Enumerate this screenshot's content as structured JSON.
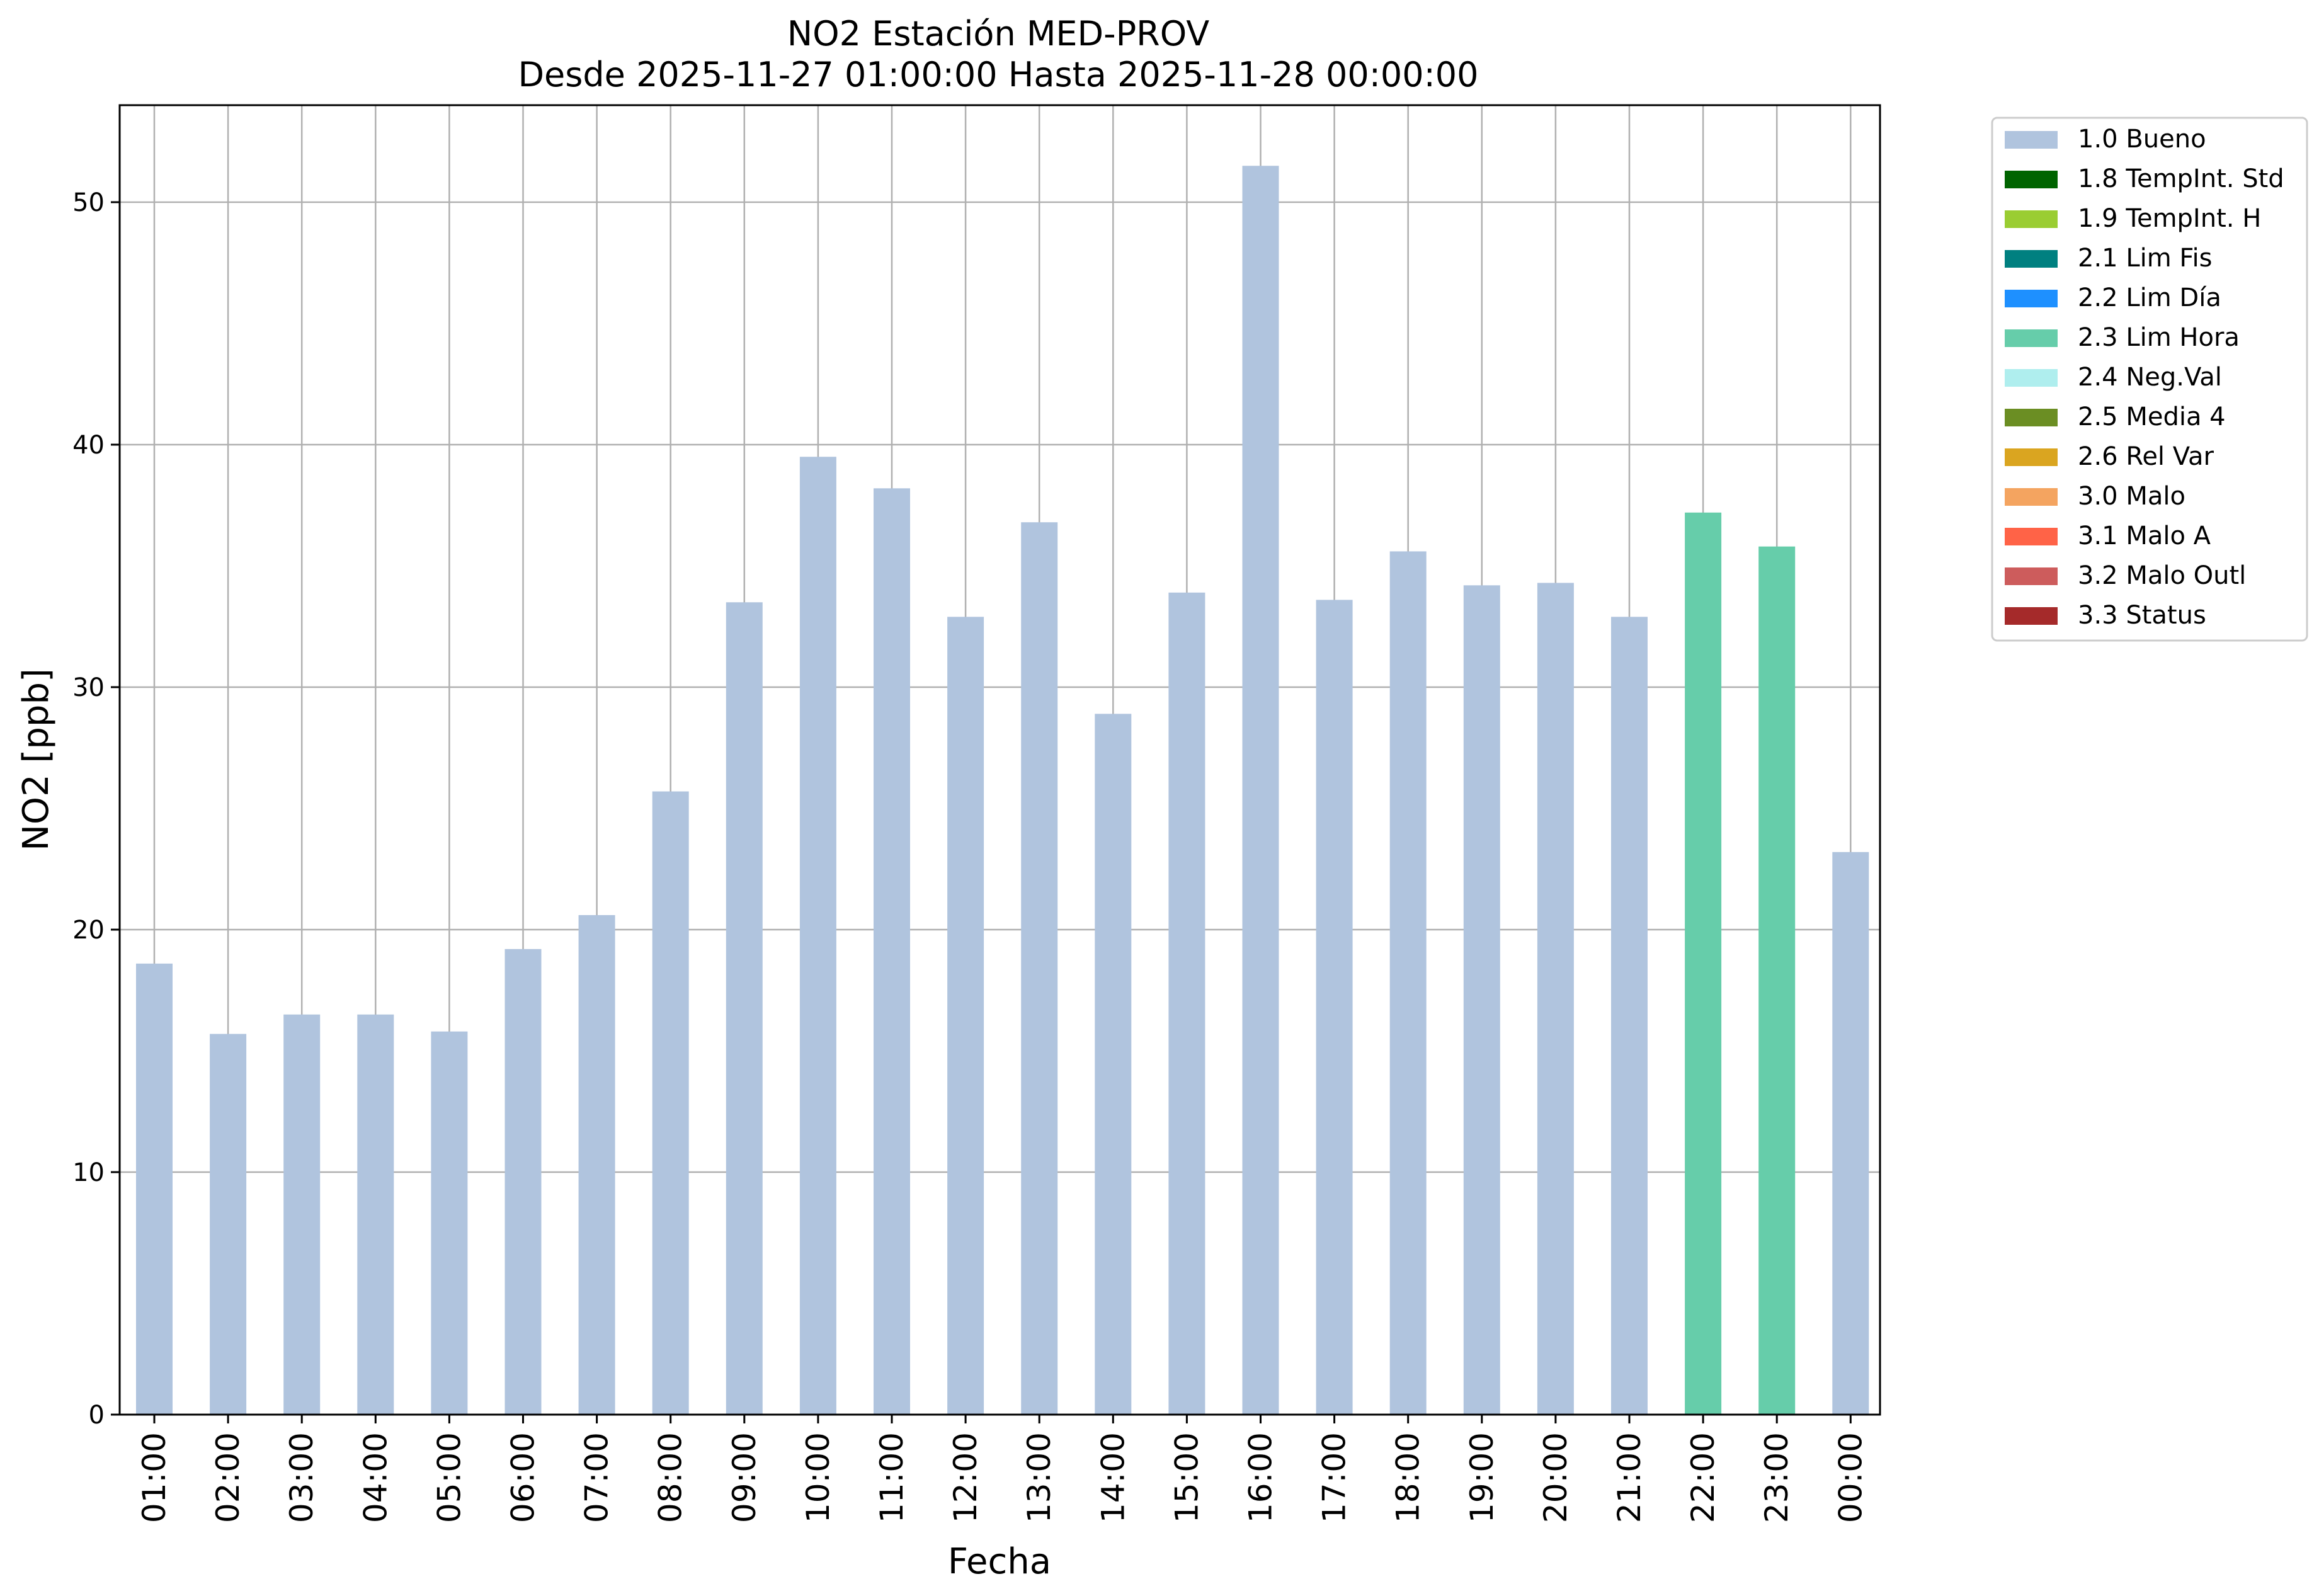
{
  "chart_data": {
    "type": "bar",
    "title": "NO2 Estación MED-PROV",
    "subtitle": "Desde 2025-11-27 01:00:00 Hasta 2025-11-28 00:00:00",
    "xlabel": "Fecha",
    "ylabel": "NO2 [ppb]",
    "ylim": [
      0,
      54
    ],
    "yticks": [
      0,
      10,
      20,
      30,
      40,
      50
    ],
    "grid": true,
    "legend_position": "outside-top-right",
    "categories": [
      "01:00",
      "02:00",
      "03:00",
      "04:00",
      "05:00",
      "06:00",
      "07:00",
      "08:00",
      "09:00",
      "10:00",
      "11:00",
      "12:00",
      "13:00",
      "14:00",
      "15:00",
      "16:00",
      "17:00",
      "18:00",
      "19:00",
      "20:00",
      "21:00",
      "22:00",
      "23:00",
      "00:00"
    ],
    "values": [
      18.6,
      15.7,
      16.5,
      16.5,
      15.8,
      19.2,
      20.6,
      25.7,
      33.5,
      39.5,
      38.2,
      32.9,
      36.8,
      28.9,
      33.9,
      51.5,
      33.6,
      35.6,
      34.2,
      34.3,
      32.9,
      37.2,
      35.8,
      23.2
    ],
    "flags": [
      "1.0 Bueno",
      "1.0 Bueno",
      "1.0 Bueno",
      "1.0 Bueno",
      "1.0 Bueno",
      "1.0 Bueno",
      "1.0 Bueno",
      "1.0 Bueno",
      "1.0 Bueno",
      "1.0 Bueno",
      "1.0 Bueno",
      "1.0 Bueno",
      "1.0 Bueno",
      "1.0 Bueno",
      "1.0 Bueno",
      "1.0 Bueno",
      "1.0 Bueno",
      "1.0 Bueno",
      "1.0 Bueno",
      "1.0 Bueno",
      "1.0 Bueno",
      "2.3 Lim Hora",
      "2.3 Lim Hora",
      "1.0 Bueno"
    ],
    "legend": [
      {
        "label": "1.0 Bueno",
        "color": "#b0c4de"
      },
      {
        "label": "1.8 TempInt. Std",
        "color": "#006400"
      },
      {
        "label": "1.9 TempInt. H",
        "color": "#9acd32"
      },
      {
        "label": "2.1 Lim Fis",
        "color": "#008080"
      },
      {
        "label": "2.2 Lim Día",
        "color": "#1e90ff"
      },
      {
        "label": "2.3 Lim Hora",
        "color": "#66cdaa"
      },
      {
        "label": "2.4 Neg.Val",
        "color": "#afeeee"
      },
      {
        "label": "2.5 Media 4",
        "color": "#6b8e23"
      },
      {
        "label": "2.6 Rel Var",
        "color": "#daa520"
      },
      {
        "label": "3.0 Malo",
        "color": "#f4a460"
      },
      {
        "label": "3.1 Malo A",
        "color": "#ff6347"
      },
      {
        "label": "3.2 Malo Outl",
        "color": "#cd5c5c"
      },
      {
        "label": "3.3 Status",
        "color": "#a52a2a"
      }
    ]
  }
}
